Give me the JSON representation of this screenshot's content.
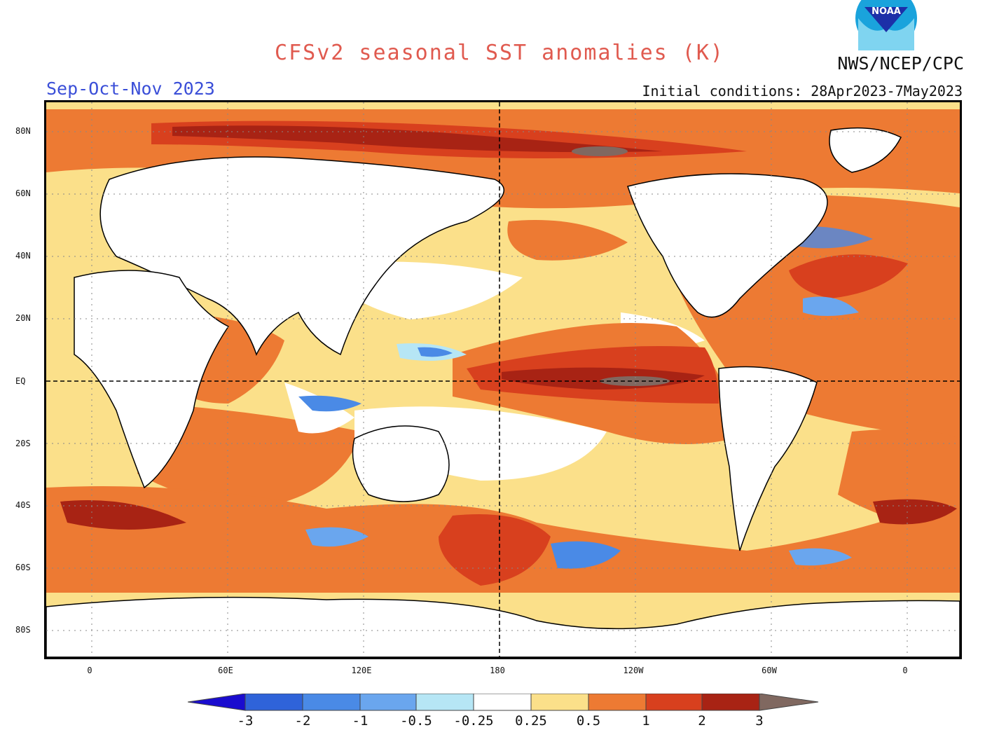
{
  "header": {
    "title": "CFSv2 seasonal SST anomalies (K)",
    "season": "Sep-Oct-Nov 2023",
    "agency": "NWS/NCEP/CPC",
    "initial_conditions": "Initial conditions: 28Apr2023-7May2023",
    "logo_text": "NOAA"
  },
  "map": {
    "lat_labels": [
      "80N",
      "60N",
      "40N",
      "20N",
      "EQ",
      "20S",
      "40S",
      "60S",
      "80S"
    ],
    "lon_labels": [
      "0",
      "60E",
      "120E",
      "180",
      "120W",
      "60W",
      "0"
    ]
  },
  "colorbar": {
    "levels": [
      "-3",
      "-2",
      "-1",
      "-0.5",
      "-0.25",
      "0.25",
      "0.5",
      "1",
      "2",
      "3"
    ],
    "colors": {
      "below_-3": "#1a0ccf",
      "-3_-2": "#2f63d9",
      "-2_-1": "#4a8ae6",
      "-1_-0.5": "#6aa6ee",
      "-0.5_-0.25": "#b6e6f5",
      "-0.25_0.25": "#ffffff",
      "0.25_0.5": "#fbe08a",
      "0.5_1": "#ed7a33",
      "1_2": "#d8401e",
      "2_3": "#a82314",
      "above_3": "#806860"
    }
  }
}
